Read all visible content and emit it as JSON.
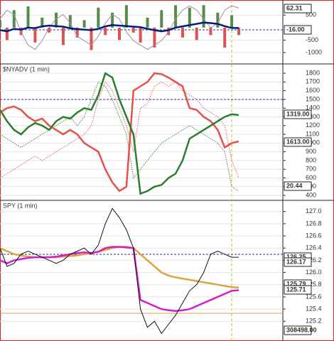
{
  "chart_data": [
    {
      "type": "line",
      "ylim": [
        -1400,
        1050
      ],
      "yticks": [
        500,
        -500,
        -1000
      ],
      "y2lim": [
        0,
        70
      ],
      "price_labels": [
        "62.31",
        "-16.00"
      ],
      "series": [
        {
          "style": "bar",
          "color": "#5a8a4a",
          "negative_color": "#d9534f",
          "values": [
            300,
            -500,
            700,
            -300,
            850,
            -600,
            400,
            -200,
            600,
            -700,
            500,
            -400,
            300,
            -900,
            800,
            -300,
            600,
            -500,
            900,
            -200,
            -600,
            400,
            -800,
            700,
            -300,
            900,
            -400,
            800,
            -500,
            900,
            -300,
            600,
            -800,
            500,
            -300
          ]
        },
        {
          "style": "line",
          "color": "#9a8fb0",
          "axis": "y2",
          "values": [
            50,
            60,
            55,
            35,
            20,
            15,
            25,
            40,
            50,
            55,
            45,
            30,
            25,
            20,
            30,
            45,
            55,
            50,
            35,
            25,
            20,
            15,
            20,
            25,
            35,
            50,
            60,
            65,
            60,
            50,
            40,
            45,
            60,
            65,
            62.31
          ]
        },
        {
          "style": "thick",
          "color": "#001f7a",
          "values": [
            -100,
            -150,
            -50,
            -80,
            0,
            -20,
            50,
            80,
            60,
            40,
            -30,
            -60,
            -80,
            -100,
            -50,
            50,
            100,
            80,
            60,
            40,
            20,
            -50,
            -100,
            -150,
            -100,
            0,
            50,
            100,
            150,
            200,
            180,
            150,
            60,
            -16,
            -16
          ]
        }
      ]
    },
    {
      "type": "line",
      "title": "$NYADV (1 min)",
      "ylim": [
        360,
        1890
      ],
      "yticks": [
        1800,
        1700,
        1600,
        1500,
        1400,
        1300,
        1200,
        1100,
        1000,
        900,
        800,
        700,
        600,
        500,
        400
      ],
      "price_labels": [
        "1319.00",
        "1613.00",
        "20.44"
      ],
      "series": [
        {
          "style": "dotted",
          "color": "#e06060",
          "values": [
            600,
            650,
            700,
            750,
            800,
            850,
            800,
            850,
            900,
            950,
            1000,
            1050,
            1100,
            1200,
            1500,
            1700,
            1600,
            1400,
            1200,
            900,
            1400,
            1450,
            1650,
            1700,
            1650,
            1700,
            1600,
            1550,
            1500,
            1400,
            1350,
            1300,
            1200,
            800,
            600
          ]
        },
        {
          "style": "dotted",
          "color": "#3a8a3a",
          "values": [
            1100,
            1050,
            1000,
            950,
            1000,
            1050,
            1100,
            1150,
            1200,
            1250,
            1300,
            1200,
            1300,
            1500,
            1700,
            1650,
            1500,
            1300,
            1100,
            600,
            700,
            800,
            900,
            1000,
            1050,
            1100,
            1150,
            1200,
            1150,
            1100,
            1050,
            1000,
            900,
            500,
            450
          ]
        },
        {
          "style": "thick",
          "color": "#e8504a",
          "values": [
            1350,
            1400,
            1420,
            1380,
            1300,
            1250,
            1280,
            1200,
            1150,
            1100,
            1150,
            1100,
            1000,
            950,
            900,
            700,
            550,
            450,
            500,
            1600,
            1650,
            1700,
            1800,
            1790,
            1750,
            1700,
            1650,
            1400,
            1380,
            1300,
            1250,
            1150,
            950,
            1000,
            1020
          ]
        },
        {
          "style": "thick",
          "color": "#2e7d2e",
          "values": [
            1380,
            1250,
            1150,
            1100,
            1180,
            1230,
            1200,
            1150,
            1250,
            1300,
            1280,
            1350,
            1400,
            1380,
            1550,
            1800,
            1750,
            1500,
            1300,
            1100,
            420,
            450,
            500,
            520,
            600,
            650,
            800,
            1050,
            1100,
            1150,
            1200,
            1250,
            1300,
            1330,
            1320
          ]
        }
      ]
    },
    {
      "type": "line",
      "title": "SPY (1 min)",
      "ylim": [
        124.9,
        127.16
      ],
      "yticks": [
        {
          "value": 127,
          "label": "127.0"
        },
        126.8,
        126.6,
        126.4,
        126.2,
        {
          "value": 126,
          "label": "126.0"
        },
        125.8,
        125.6,
        125.4,
        125.2
      ],
      "price_labels": [
        "126.25",
        "126.17",
        "125.79",
        "125.71",
        "308498.00"
      ],
      "series": [
        {
          "style": "thick",
          "color": "#d9a441",
          "values": [
            126.4,
            126.35,
            126.3,
            126.28,
            126.26,
            126.25,
            126.25,
            126.25,
            126.25,
            126.26,
            126.27,
            126.28,
            126.3,
            126.32,
            126.34,
            126.37,
            126.4,
            126.42,
            126.42,
            126.4,
            126.3,
            126.2,
            126.1,
            126,
            125.95,
            125.92,
            125.9,
            125.88,
            125.86,
            125.84,
            125.82,
            125.8,
            125.78,
            125.76,
            125.75
          ]
        },
        {
          "style": "thick",
          "color": "#d020c8",
          "values": [
            126.2,
            126.15,
            126.2,
            126.22,
            126.24,
            126.25,
            126.25,
            126.25,
            126.26,
            126.28,
            126.3,
            126.32,
            126.33,
            126.32,
            126.34,
            126.4,
            126.42,
            126.42,
            126.41,
            126.4,
            125.55,
            125.5,
            125.45,
            125.4,
            125.38,
            125.37,
            125.38,
            125.4,
            125.45,
            125.5,
            125.55,
            125.6,
            125.65,
            125.7,
            125.71
          ]
        },
        {
          "style": "line",
          "color": "#111111",
          "values": [
            126.4,
            126.1,
            126.15,
            126.3,
            126.35,
            126.3,
            126.25,
            126.2,
            126.15,
            126.2,
            126.3,
            126.35,
            126.4,
            126.3,
            126.45,
            126.8,
            127.05,
            126.9,
            126.7,
            126.4,
            125.4,
            125.1,
            125.2,
            125,
            125.15,
            125.3,
            125.5,
            125.7,
            125.8,
            126,
            126.3,
            126.35,
            126.3,
            126.25,
            126.25
          ]
        }
      ]
    }
  ]
}
